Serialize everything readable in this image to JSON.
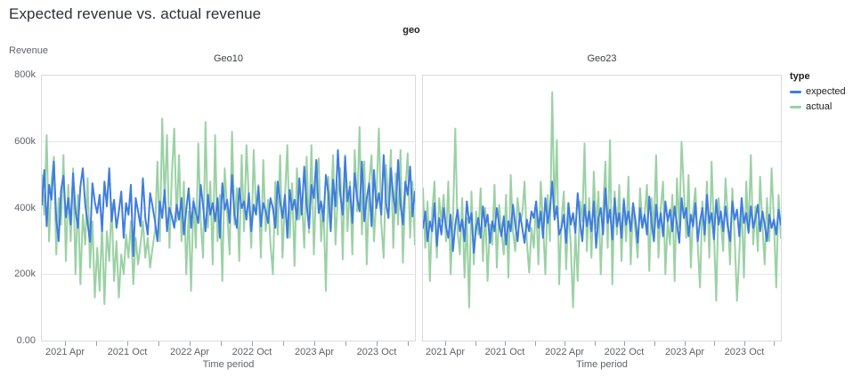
{
  "colors": {
    "expected": "#3f7de0",
    "actual": "#9bd1a5",
    "grid": "#e5e7e9",
    "panel_border": "#d9dbde",
    "axis_text": "#5f6368",
    "title_text": "#2b3139"
  },
  "chart_data": {
    "type": "line",
    "title": "Expected revenue vs. actual revenue",
    "facet_field": "geo",
    "xlabel": "Time period",
    "ylabel": "Revenue",
    "values_unit": "thousands",
    "ylim": [
      0,
      800
    ],
    "grid": "horizontal-only",
    "legend": {
      "title": "type",
      "position": "right",
      "items": [
        {
          "label": "expected",
          "color_key": "expected"
        },
        {
          "label": "actual",
          "color_key": "actual"
        }
      ]
    },
    "yticks": [
      {
        "value": 800,
        "label": "800k"
      },
      {
        "value": 600,
        "label": "600k"
      },
      {
        "value": 400,
        "label": "400k"
      },
      {
        "value": 200,
        "label": "200k"
      },
      {
        "value": 0,
        "label": "0.00"
      }
    ],
    "xticks": [
      {
        "f": 0.065,
        "label": "2021 Apr"
      },
      {
        "f": 0.148,
        "label": ""
      },
      {
        "f": 0.231,
        "label": "2021 Oct"
      },
      {
        "f": 0.314,
        "label": ""
      },
      {
        "f": 0.397,
        "label": "2022 Apr"
      },
      {
        "f": 0.48,
        "label": ""
      },
      {
        "f": 0.563,
        "label": "2022 Oct"
      },
      {
        "f": 0.646,
        "label": ""
      },
      {
        "f": 0.729,
        "label": "2023 Apr"
      },
      {
        "f": 0.812,
        "label": ""
      },
      {
        "f": 0.895,
        "label": "2023 Oct"
      },
      {
        "f": 0.978,
        "label": ""
      }
    ],
    "x_domain": "weekly, 2021 Jan - 2023 Dec",
    "facets": [
      {
        "name": "Geo10",
        "series": [
          {
            "name": "expected",
            "color_key": "expected",
            "values": [
              410,
              515,
              345,
              470,
              425,
              540,
              365,
              300,
              455,
              498,
              372,
              430,
              350,
              505,
              390,
              340,
              465,
              520,
              410,
              355,
              298,
              475,
              418,
              385,
              440,
              330,
              480,
              405,
              520,
              360,
              425,
              340,
              390,
              450,
              310,
              415,
              380,
              470,
              255,
              430,
              390,
              345,
              490,
              370,
              320,
              445,
              405,
              360,
              300,
              420,
              370,
              455,
              330,
              400,
              375,
              340,
              410,
              365,
              430,
              320,
              395,
              460,
              340,
              420,
              385,
              355,
              470,
              405,
              330,
              440,
              380,
              415,
              360,
              430,
              310,
              475,
              395,
              425,
              355,
              500,
              380,
              340,
              460,
              400,
              420,
              365,
              445,
              330,
              410,
              380,
              465,
              345,
              415,
              390,
              355,
              430,
              400,
              340,
              480,
              420,
              370,
              440,
              310,
              455,
              395,
              425,
              365,
              490,
              380,
              525,
              410,
              340,
              470,
              430,
              545,
              385,
              420,
              360,
              500,
              445,
              330,
              485,
              405,
              575,
              440,
              380,
              555,
              420,
              465,
              355,
              505,
              430,
              390,
              540,
              360,
              430,
              475,
              345,
              515,
              400,
              445,
              380,
              560,
              415,
              370,
              520,
              435,
              385,
              545,
              410,
              350,
              480,
              440,
              525,
              375,
              450
            ]
          },
          {
            "name": "actual",
            "color_key": "actual",
            "values": [
              500,
              380,
              620,
              300,
              480,
              555,
              260,
              430,
              350,
              560,
              240,
              470,
              300,
              520,
              200,
              440,
              170,
              380,
              290,
              490,
              220,
              360,
              130,
              280,
              150,
              350,
              110,
              330,
              240,
              415,
              180,
              300,
              130,
              260,
              200,
              320,
              250,
              360,
              170,
              310,
              230,
              290,
              360,
              250,
              310,
              220,
              280,
              330,
              540,
              300,
              670,
              420,
              620,
              280,
              500,
              640,
              360,
              560,
              300,
              480,
              200,
              390,
              150,
              430,
              280,
              595,
              360,
              250,
              660,
              340,
              480,
              230,
              620,
              300,
              440,
              180,
              520,
              390,
              260,
              630,
              350,
              460,
              240,
              560,
              330,
              590,
              430,
              280,
              575,
              390,
              470,
              250,
              545,
              330,
              425,
              290,
              200,
              480,
              320,
              560,
              250,
              430,
              590,
              310,
              475,
              225,
              520,
              365,
              430,
              280,
              555,
              325,
              590,
              260,
              475,
              550,
              300,
              410,
              150,
              495,
              380,
              560,
              290,
              445,
              520,
              245,
              560,
              330,
              480,
              260,
              575,
              390,
              645,
              320,
              540,
              230,
              475,
              560,
              300,
              430,
              640,
              355,
              250,
              530,
              410,
              575,
              280,
              505,
              350,
              575,
              235,
              450,
              565,
              310,
              480,
              290
            ]
          }
        ]
      },
      {
        "name": "Geo23",
        "series": [
          {
            "name": "expected",
            "color_key": "expected",
            "values": [
              340,
              390,
              300,
              360,
              330,
              415,
              285,
              370,
              320,
              400,
              345,
              310,
              380,
              270,
              350,
              395,
              330,
              365,
              300,
              420,
              355,
              385,
              265,
              340,
              370,
              310,
              405,
              345,
              380,
              295,
              360,
              330,
              400,
              350,
              315,
              375,
              290,
              360,
              330,
              410,
              350,
              300,
              385,
              340,
              295,
              365,
              330,
              390,
              370,
              420,
              340,
              390,
              310,
              430,
              355,
              395,
              480,
              365,
              405,
              320,
              340,
              380,
              295,
              415,
              350,
              385,
              325,
              445,
              360,
              300,
              410,
              345,
              390,
              330,
              420,
              280,
              370,
              400,
              320,
              460,
              355,
              395,
              305,
              430,
              345,
              385,
              310,
              425,
              350,
              390,
              330,
              415,
              365,
              295,
              400,
              340,
              380,
              320,
              435,
              355,
              300,
              410,
              340,
              385,
              315,
              420,
              360,
              395,
              330,
              405,
              350,
              295,
              430,
              370,
              400,
              315,
              380,
              345,
              415,
              300,
              360,
              400,
              320,
              440,
              355,
              385,
              305,
              425,
              350,
              390,
              330,
              405,
              345,
              300,
              420,
              365,
              395,
              315,
              430,
              355,
              385,
              325,
              405,
              340,
              370,
              410,
              330,
              390,
              350,
              300,
              380,
              340,
              365,
              320,
              395,
              350
            ]
          },
          {
            "name": "actual",
            "color_key": "actual",
            "values": [
              460,
              280,
              420,
              180,
              390,
              480,
              250,
              430,
              360,
              440,
              300,
              480,
              200,
              360,
              640,
              330,
              260,
              430,
              190,
              370,
              100,
              450,
              230,
              390,
              320,
              460,
              240,
              400,
              180,
              350,
              290,
              470,
              220,
              410,
              330,
              260,
              440,
              190,
              500,
              330,
              270,
              430,
              360,
              380,
              480,
              300,
              205,
              340,
              280,
              420,
              230,
              480,
              350,
              200,
              440,
              300,
              750,
              380,
              605,
              170,
              360,
              450,
              215,
              400,
              290,
              100,
              330,
              180,
              420,
              360,
              595,
              270,
              430,
              250,
              510,
              340,
              450,
              200,
              390,
              540,
              280,
              605,
              170,
              450,
              320,
              470,
              240,
              430,
              300,
              495,
              230,
              410,
              330,
              250,
              460,
              350,
              380,
              470,
              210,
              430,
              330,
              560,
              250,
              400,
              480,
              200,
              360,
              290,
              440,
              180,
              490,
              340,
              600,
              450,
              310,
              500,
              220,
              390,
              460,
              290,
              160,
              420,
              300,
              480,
              250,
              540,
              330,
              120,
              430,
              360,
              270,
              490,
              380,
              230,
              460,
              310,
              120,
              260,
              420,
              190,
              480,
              330,
              560,
              290,
              405,
              270,
              495,
              345,
              230,
              430,
              300,
              520,
              360,
              160,
              440,
              310
            ]
          }
        ]
      }
    ]
  }
}
